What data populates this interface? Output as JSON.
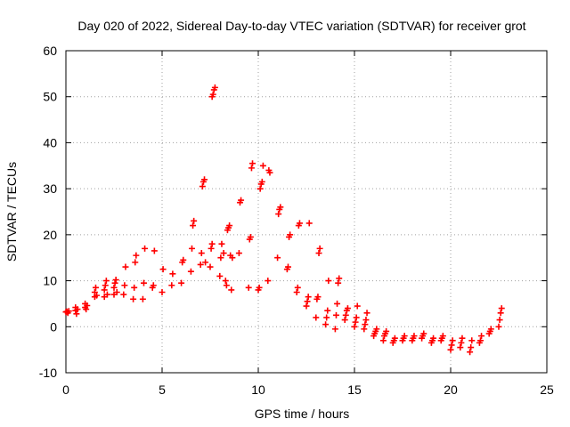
{
  "chart_data": {
    "type": "scatter",
    "title": "Day 020 of 2022, Sidereal Day-to-day VTEC variation (SDTVAR) for receiver grot",
    "xlabel": "GPS time / hours",
    "ylabel": "SDTVAR / TECUs",
    "xlim": [
      0,
      25
    ],
    "ylim": [
      -10,
      60
    ],
    "xticks": [
      0,
      5,
      10,
      15,
      20,
      25
    ],
    "yticks": [
      -10,
      0,
      10,
      20,
      30,
      40,
      50,
      60
    ],
    "xtick_labels": [
      "0",
      "5",
      "10",
      "15",
      "20",
      "25"
    ],
    "ytick_labels": [
      "-10",
      "0",
      "10",
      "20",
      "30",
      "40",
      "50",
      "60"
    ],
    "grid": true,
    "marker": "plus",
    "color": "#ff0000",
    "series": [
      {
        "name": "SDTVAR",
        "points": [
          [
            0.0,
            3.2
          ],
          [
            0.05,
            3.3
          ],
          [
            0.1,
            3.0
          ],
          [
            0.15,
            3.4
          ],
          [
            0.5,
            3.5
          ],
          [
            0.5,
            4.2
          ],
          [
            0.55,
            2.8
          ],
          [
            0.6,
            3.8
          ],
          [
            1.0,
            4.2
          ],
          [
            1.0,
            5.0
          ],
          [
            1.05,
            3.8
          ],
          [
            1.1,
            4.6
          ],
          [
            1.5,
            6.5
          ],
          [
            1.5,
            7.5
          ],
          [
            1.55,
            8.5
          ],
          [
            1.6,
            6.8
          ],
          [
            2.0,
            6.5
          ],
          [
            2.0,
            8.0
          ],
          [
            2.05,
            9.0
          ],
          [
            2.1,
            10.0
          ],
          [
            2.15,
            7.0
          ],
          [
            2.5,
            7.0
          ],
          [
            2.5,
            8.5
          ],
          [
            2.55,
            9.5
          ],
          [
            2.6,
            10.2
          ],
          [
            2.65,
            7.5
          ],
          [
            3.0,
            7.0
          ],
          [
            3.05,
            9.0
          ],
          [
            3.1,
            13.0
          ],
          [
            3.5,
            6.0
          ],
          [
            3.55,
            8.5
          ],
          [
            3.6,
            14.0
          ],
          [
            3.65,
            15.5
          ],
          [
            4.0,
            6.0
          ],
          [
            4.05,
            9.5
          ],
          [
            4.1,
            17.0
          ],
          [
            4.5,
            8.5
          ],
          [
            4.55,
            9.0
          ],
          [
            4.6,
            16.5
          ],
          [
            5.0,
            7.5
          ],
          [
            5.05,
            12.5
          ],
          [
            5.5,
            9.0
          ],
          [
            5.55,
            11.5
          ],
          [
            6.0,
            9.5
          ],
          [
            6.05,
            14.0
          ],
          [
            6.1,
            14.5
          ],
          [
            6.5,
            12.0
          ],
          [
            6.55,
            17.0
          ],
          [
            6.6,
            22.0
          ],
          [
            6.65,
            23.0
          ],
          [
            7.0,
            13.5
          ],
          [
            7.05,
            16.0
          ],
          [
            7.1,
            30.5
          ],
          [
            7.15,
            31.5
          ],
          [
            7.2,
            32.0
          ],
          [
            7.25,
            14.0
          ],
          [
            7.5,
            13.0
          ],
          [
            7.55,
            17.0
          ],
          [
            7.6,
            18.0
          ],
          [
            7.65,
            50.5
          ],
          [
            7.7,
            51.5
          ],
          [
            7.75,
            52.0
          ],
          [
            7.6,
            50.0
          ],
          [
            8.0,
            11.0
          ],
          [
            8.05,
            15.0
          ],
          [
            8.1,
            18.0
          ],
          [
            8.2,
            16.0
          ],
          [
            8.3,
            10.0
          ],
          [
            8.35,
            9.0
          ],
          [
            8.4,
            21.0
          ],
          [
            8.45,
            21.5
          ],
          [
            8.5,
            22.0
          ],
          [
            8.55,
            15.5
          ],
          [
            8.6,
            8.0
          ],
          [
            8.65,
            15.0
          ],
          [
            9.0,
            16.0
          ],
          [
            9.05,
            27.0
          ],
          [
            9.1,
            27.5
          ],
          [
            9.5,
            8.5
          ],
          [
            9.55,
            19.0
          ],
          [
            9.6,
            19.5
          ],
          [
            9.65,
            34.5
          ],
          [
            9.7,
            35.5
          ],
          [
            10.0,
            8.0
          ],
          [
            10.05,
            8.5
          ],
          [
            10.1,
            30.0
          ],
          [
            10.15,
            31.0
          ],
          [
            10.2,
            31.5
          ],
          [
            10.25,
            35.0
          ],
          [
            10.5,
            10.0
          ],
          [
            10.55,
            34.0
          ],
          [
            10.6,
            33.5
          ],
          [
            11.0,
            15.0
          ],
          [
            11.05,
            24.5
          ],
          [
            11.1,
            25.5
          ],
          [
            11.15,
            26.0
          ],
          [
            11.5,
            12.5
          ],
          [
            11.55,
            13.0
          ],
          [
            11.6,
            19.5
          ],
          [
            11.65,
            20.0
          ],
          [
            12.0,
            7.5
          ],
          [
            12.05,
            8.5
          ],
          [
            12.1,
            22.0
          ],
          [
            12.15,
            22.5
          ],
          [
            12.5,
            4.5
          ],
          [
            12.55,
            5.5
          ],
          [
            12.6,
            6.5
          ],
          [
            12.65,
            22.5
          ],
          [
            13.0,
            2.0
          ],
          [
            13.05,
            6.0
          ],
          [
            13.1,
            6.5
          ],
          [
            13.15,
            16.0
          ],
          [
            13.2,
            17.0
          ],
          [
            13.5,
            0.5
          ],
          [
            13.55,
            2.0
          ],
          [
            13.6,
            3.5
          ],
          [
            13.65,
            10.0
          ],
          [
            14.0,
            -0.5
          ],
          [
            14.05,
            2.5
          ],
          [
            14.1,
            5.0
          ],
          [
            14.15,
            9.5
          ],
          [
            14.2,
            10.5
          ],
          [
            14.5,
            1.5
          ],
          [
            14.55,
            2.5
          ],
          [
            14.6,
            3.5
          ],
          [
            14.65,
            4.0
          ],
          [
            15.0,
            0.0
          ],
          [
            15.05,
            1.0
          ],
          [
            15.1,
            2.0
          ],
          [
            15.15,
            4.5
          ],
          [
            15.5,
            -0.5
          ],
          [
            15.55,
            0.5
          ],
          [
            15.6,
            1.5
          ],
          [
            15.65,
            3.0
          ],
          [
            16.0,
            -2.0
          ],
          [
            16.05,
            -1.5
          ],
          [
            16.1,
            -1.0
          ],
          [
            16.15,
            -0.5
          ],
          [
            16.5,
            -3.0
          ],
          [
            16.55,
            -2.0
          ],
          [
            16.6,
            -1.5
          ],
          [
            16.65,
            -1.0
          ],
          [
            17.0,
            -3.5
          ],
          [
            17.05,
            -3.0
          ],
          [
            17.1,
            -2.5
          ],
          [
            17.5,
            -3.0
          ],
          [
            17.55,
            -2.5
          ],
          [
            17.6,
            -2.0
          ],
          [
            18.0,
            -3.0
          ],
          [
            18.05,
            -2.5
          ],
          [
            18.1,
            -2.0
          ],
          [
            18.5,
            -2.5
          ],
          [
            18.55,
            -2.0
          ],
          [
            18.6,
            -1.5
          ],
          [
            19.0,
            -3.5
          ],
          [
            19.05,
            -3.0
          ],
          [
            19.1,
            -2.5
          ],
          [
            19.5,
            -3.0
          ],
          [
            19.55,
            -2.5
          ],
          [
            19.6,
            -2.0
          ],
          [
            20.0,
            -5.0
          ],
          [
            20.05,
            -4.0
          ],
          [
            20.1,
            -3.0
          ],
          [
            20.5,
            -4.5
          ],
          [
            20.55,
            -3.5
          ],
          [
            20.6,
            -2.5
          ],
          [
            21.0,
            -5.5
          ],
          [
            21.05,
            -4.5
          ],
          [
            21.1,
            -3.0
          ],
          [
            21.5,
            -3.5
          ],
          [
            21.55,
            -3.0
          ],
          [
            21.6,
            -2.0
          ],
          [
            22.0,
            -1.5
          ],
          [
            22.05,
            -1.0
          ],
          [
            22.1,
            -0.5
          ],
          [
            22.5,
            0.0
          ],
          [
            22.55,
            1.5
          ],
          [
            22.6,
            3.0
          ],
          [
            22.65,
            4.0
          ]
        ]
      }
    ]
  }
}
